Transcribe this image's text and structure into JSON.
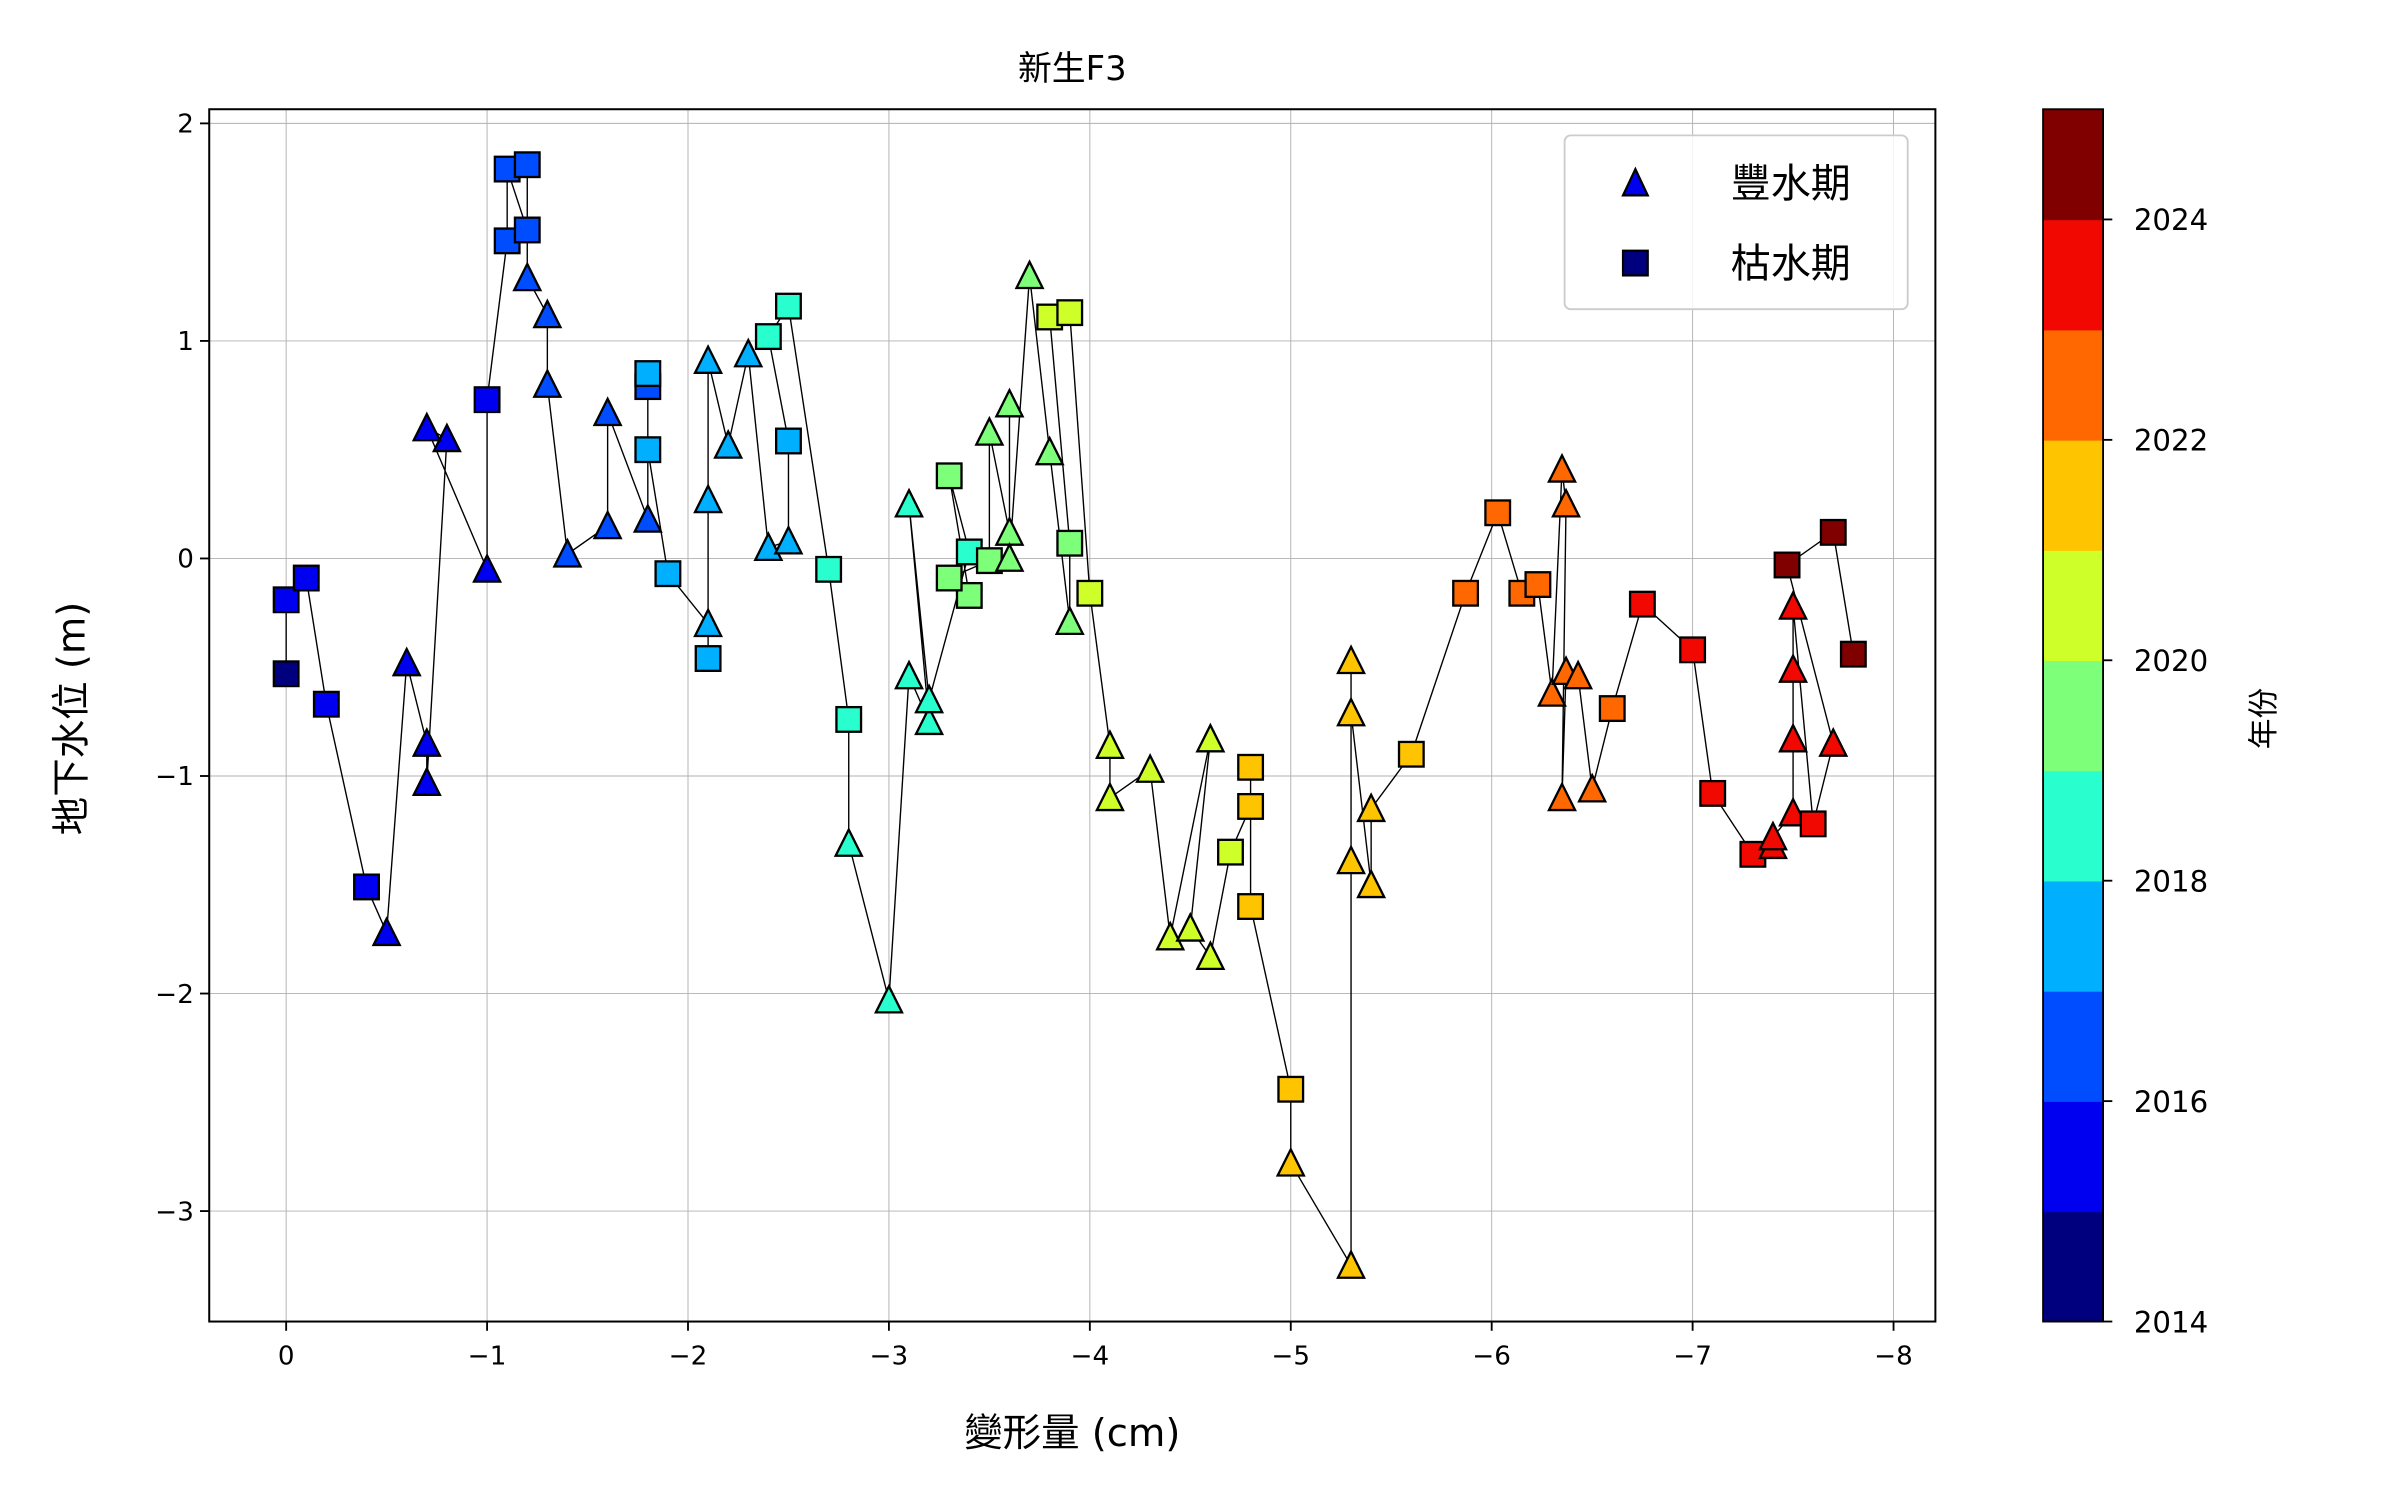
{
  "chart_data": {
    "type": "scatter",
    "title": "新生F3",
    "xlabel": "變形量 (cm)",
    "ylabel": "地下水位 (m)",
    "xlim": [
      0.37,
      -8.3
    ],
    "ylim": [
      -3.5,
      2.07
    ],
    "grid": true,
    "x_ticks": [
      0,
      -1,
      -2,
      -3,
      -4,
      -5,
      -6,
      -7,
      -8
    ],
    "x_tick_labels": [
      "0",
      "−1",
      "−2",
      "−3",
      "−4",
      "−5",
      "−6",
      "−7",
      "−8"
    ],
    "y_ticks": [
      2,
      1,
      0,
      -1,
      -2,
      -3
    ],
    "y_tick_labels": [
      "2",
      "1",
      "0",
      "−1",
      "−2",
      "−3"
    ],
    "legend": {
      "placement": "top-right",
      "entries": [
        {
          "marker": "triangle",
          "label": "豐水期"
        },
        {
          "marker": "square",
          "label": "枯水期"
        }
      ]
    },
    "colorbar": {
      "label": "年份",
      "range": [
        2014,
        2025
      ],
      "ticks": [
        2014,
        2016,
        2018,
        2020,
        2022,
        2024
      ],
      "tick_labels": [
        "2014",
        "2016",
        "2018",
        "2020",
        "2022",
        "2024"
      ],
      "colors": {
        "2014": "#00007f",
        "2015": "#0000f1",
        "2016": "#004cff",
        "2017": "#00b0ff",
        "2018": "#29ffce",
        "2019": "#7dff7a",
        "2020": "#ceff29",
        "2021": "#ffc400",
        "2022": "#ff6800",
        "2023": "#f10800",
        "2024": "#800000"
      }
    },
    "series": [
      {
        "x": 0,
        "y": -0.53,
        "year": 2014,
        "m": "s"
      },
      {
        "x": 0,
        "y": -0.19,
        "year": 2015,
        "m": "s"
      },
      {
        "x": -0.1,
        "y": -0.09,
        "year": 2015,
        "m": "s"
      },
      {
        "x": -0.2,
        "y": -0.67,
        "year": 2015,
        "m": "s"
      },
      {
        "x": -0.4,
        "y": -1.51,
        "year": 2015,
        "m": "s"
      },
      {
        "x": -0.5,
        "y": -1.72,
        "year": 2015,
        "m": "t"
      },
      {
        "x": -0.6,
        "y": -0.48,
        "year": 2015,
        "m": "t"
      },
      {
        "x": -0.7,
        "y": -0.85,
        "year": 2015,
        "m": "t"
      },
      {
        "x": -0.7,
        "y": -1.03,
        "year": 2015,
        "m": "t"
      },
      {
        "x": -0.8,
        "y": 0.55,
        "year": 2015,
        "m": "t"
      },
      {
        "x": -0.7,
        "y": 0.6,
        "year": 2015,
        "m": "t"
      },
      {
        "x": -1.0,
        "y": -0.05,
        "year": 2015,
        "m": "t"
      },
      {
        "x": -1.0,
        "y": 0.73,
        "year": 2015,
        "m": "s"
      },
      {
        "x": -1.1,
        "y": 1.46,
        "year": 2016,
        "m": "s"
      },
      {
        "x": -1.1,
        "y": 1.79,
        "year": 2016,
        "m": "s"
      },
      {
        "x": -1.2,
        "y": 1.51,
        "year": 2016,
        "m": "s"
      },
      {
        "x": -1.2,
        "y": 1.81,
        "year": 2016,
        "m": "s"
      },
      {
        "x": -1.2,
        "y": 1.29,
        "year": 2016,
        "m": "t"
      },
      {
        "x": -1.3,
        "y": 1.12,
        "year": 2016,
        "m": "t"
      },
      {
        "x": -1.3,
        "y": 0.8,
        "year": 2016,
        "m": "t"
      },
      {
        "x": -1.4,
        "y": 0.02,
        "year": 2016,
        "m": "t"
      },
      {
        "x": -1.6,
        "y": 0.15,
        "year": 2016,
        "m": "t"
      },
      {
        "x": -1.6,
        "y": 0.67,
        "year": 2016,
        "m": "t"
      },
      {
        "x": -1.8,
        "y": 0.18,
        "year": 2016,
        "m": "t"
      },
      {
        "x": -1.8,
        "y": 0.79,
        "year": 2016,
        "m": "s"
      },
      {
        "x": -1.8,
        "y": 0.85,
        "year": 2017,
        "m": "s"
      },
      {
        "x": -1.8,
        "y": 0.5,
        "year": 2017,
        "m": "s"
      },
      {
        "x": -1.9,
        "y": -0.07,
        "year": 2017,
        "m": "s"
      },
      {
        "x": -2.1,
        "y": -0.3,
        "year": 2017,
        "m": "t"
      },
      {
        "x": -2.1,
        "y": -0.46,
        "year": 2017,
        "m": "s"
      },
      {
        "x": -2.1,
        "y": 0.27,
        "year": 2017,
        "m": "t"
      },
      {
        "x": -2.1,
        "y": 0.91,
        "year": 2017,
        "m": "t"
      },
      {
        "x": -2.2,
        "y": 0.52,
        "year": 2017,
        "m": "t"
      },
      {
        "x": -2.3,
        "y": 0.94,
        "year": 2017,
        "m": "t"
      },
      {
        "x": -2.4,
        "y": 0.05,
        "year": 2017,
        "m": "t"
      },
      {
        "x": -2.5,
        "y": 0.08,
        "year": 2017,
        "m": "t"
      },
      {
        "x": -2.5,
        "y": 0.54,
        "year": 2017,
        "m": "s"
      },
      {
        "x": -2.4,
        "y": 1.02,
        "year": 2018,
        "m": "s"
      },
      {
        "x": -2.5,
        "y": 1.16,
        "year": 2018,
        "m": "s"
      },
      {
        "x": -2.7,
        "y": -0.05,
        "year": 2018,
        "m": "s"
      },
      {
        "x": -2.8,
        "y": -0.74,
        "year": 2018,
        "m": "s"
      },
      {
        "x": -2.8,
        "y": -1.31,
        "year": 2018,
        "m": "t"
      },
      {
        "x": -3.0,
        "y": -2.03,
        "year": 2018,
        "m": "t"
      },
      {
        "x": -3.1,
        "y": -0.54,
        "year": 2018,
        "m": "t"
      },
      {
        "x": -3.2,
        "y": -0.75,
        "year": 2018,
        "m": "t"
      },
      {
        "x": -3.1,
        "y": 0.25,
        "year": 2018,
        "m": "t"
      },
      {
        "x": -3.2,
        "y": -0.65,
        "year": 2018,
        "m": "t"
      },
      {
        "x": -3.4,
        "y": 0.03,
        "year": 2018,
        "m": "s"
      },
      {
        "x": -3.3,
        "y": 0.38,
        "year": 2019,
        "m": "s"
      },
      {
        "x": -3.4,
        "y": -0.17,
        "year": 2019,
        "m": "s"
      },
      {
        "x": -3.3,
        "y": -0.09,
        "year": 2019,
        "m": "s"
      },
      {
        "x": -3.5,
        "y": -0.01,
        "year": 2019,
        "m": "s"
      },
      {
        "x": -3.5,
        "y": 0.58,
        "year": 2019,
        "m": "t"
      },
      {
        "x": -3.6,
        "y": 0.12,
        "year": 2019,
        "m": "t"
      },
      {
        "x": -3.6,
        "y": 0.71,
        "year": 2019,
        "m": "t"
      },
      {
        "x": -3.6,
        "y": 0.0,
        "year": 2019,
        "m": "t"
      },
      {
        "x": -3.7,
        "y": 1.3,
        "year": 2019,
        "m": "t"
      },
      {
        "x": -3.8,
        "y": 0.49,
        "year": 2019,
        "m": "t"
      },
      {
        "x": -3.9,
        "y": -0.29,
        "year": 2019,
        "m": "t"
      },
      {
        "x": -3.9,
        "y": 0.07,
        "year": 2019,
        "m": "s"
      },
      {
        "x": -3.8,
        "y": 1.11,
        "year": 2020,
        "m": "s"
      },
      {
        "x": -3.9,
        "y": 1.13,
        "year": 2020,
        "m": "s"
      },
      {
        "x": -4.0,
        "y": -0.16,
        "year": 2020,
        "m": "s"
      },
      {
        "x": -4.1,
        "y": -0.86,
        "year": 2020,
        "m": "t"
      },
      {
        "x": -4.1,
        "y": -1.1,
        "year": 2020,
        "m": "t"
      },
      {
        "x": -4.3,
        "y": -0.97,
        "year": 2020,
        "m": "t"
      },
      {
        "x": -4.4,
        "y": -1.74,
        "year": 2020,
        "m": "t"
      },
      {
        "x": -4.6,
        "y": -0.83,
        "year": 2020,
        "m": "t"
      },
      {
        "x": -4.5,
        "y": -1.7,
        "year": 2020,
        "m": "t"
      },
      {
        "x": -4.6,
        "y": -1.83,
        "year": 2020,
        "m": "t"
      },
      {
        "x": -4.7,
        "y": -1.35,
        "year": 2020,
        "m": "s"
      },
      {
        "x": -4.8,
        "y": -1.14,
        "year": 2021,
        "m": "s"
      },
      {
        "x": -4.8,
        "y": -0.96,
        "year": 2021,
        "m": "s"
      },
      {
        "x": -4.8,
        "y": -1.6,
        "year": 2021,
        "m": "s"
      },
      {
        "x": -5.0,
        "y": -2.44,
        "year": 2021,
        "m": "s"
      },
      {
        "x": -5.0,
        "y": -2.78,
        "year": 2021,
        "m": "t"
      },
      {
        "x": -5.3,
        "y": -3.25,
        "year": 2021,
        "m": "t"
      },
      {
        "x": -5.3,
        "y": -1.39,
        "year": 2021,
        "m": "t"
      },
      {
        "x": -5.3,
        "y": -0.47,
        "year": 2021,
        "m": "t"
      },
      {
        "x": -5.3,
        "y": -0.71,
        "year": 2021,
        "m": "t"
      },
      {
        "x": -5.4,
        "y": -1.5,
        "year": 2021,
        "m": "t"
      },
      {
        "x": -5.4,
        "y": -1.15,
        "year": 2021,
        "m": "t"
      },
      {
        "x": -5.6,
        "y": -0.9,
        "year": 2021,
        "m": "s"
      },
      {
        "x": -5.87,
        "y": -0.16,
        "year": 2022,
        "m": "s"
      },
      {
        "x": -6.03,
        "y": 0.21,
        "year": 2022,
        "m": "s"
      },
      {
        "x": -6.15,
        "y": -0.16,
        "year": 2022,
        "m": "s"
      },
      {
        "x": -6.23,
        "y": -0.12,
        "year": 2022,
        "m": "s"
      },
      {
        "x": -6.3,
        "y": -0.62,
        "year": 2022,
        "m": "t"
      },
      {
        "x": -6.35,
        "y": 0.41,
        "year": 2022,
        "m": "t"
      },
      {
        "x": -6.37,
        "y": 0.25,
        "year": 2022,
        "m": "t"
      },
      {
        "x": -6.35,
        "y": -1.1,
        "year": 2022,
        "m": "t"
      },
      {
        "x": -6.37,
        "y": -0.52,
        "year": 2022,
        "m": "t"
      },
      {
        "x": -6.43,
        "y": -0.54,
        "year": 2022,
        "m": "t"
      },
      {
        "x": -6.5,
        "y": -1.06,
        "year": 2022,
        "m": "t"
      },
      {
        "x": -6.6,
        "y": -0.69,
        "year": 2022,
        "m": "s"
      },
      {
        "x": -6.75,
        "y": -0.21,
        "year": 2023,
        "m": "s"
      },
      {
        "x": -7.0,
        "y": -0.42,
        "year": 2023,
        "m": "s"
      },
      {
        "x": -7.1,
        "y": -1.08,
        "year": 2023,
        "m": "s"
      },
      {
        "x": -7.3,
        "y": -1.36,
        "year": 2023,
        "m": "s"
      },
      {
        "x": -7.4,
        "y": -1.32,
        "year": 2023,
        "m": "t"
      },
      {
        "x": -7.4,
        "y": -1.28,
        "year": 2023,
        "m": "t"
      },
      {
        "x": -7.5,
        "y": -1.17,
        "year": 2023,
        "m": "t"
      },
      {
        "x": -7.5,
        "y": -0.83,
        "year": 2023,
        "m": "t"
      },
      {
        "x": -7.5,
        "y": -0.51,
        "year": 2023,
        "m": "t"
      },
      {
        "x": -7.5,
        "y": -0.22,
        "year": 2023,
        "m": "t"
      },
      {
        "x": -7.6,
        "y": -1.22,
        "year": 2023,
        "m": "s"
      },
      {
        "x": -7.7,
        "y": -0.85,
        "year": 2023,
        "m": "t"
      },
      {
        "x": -7.47,
        "y": -0.03,
        "year": 2024,
        "m": "s"
      },
      {
        "x": -7.7,
        "y": 0.12,
        "year": 2024,
        "m": "s"
      },
      {
        "x": -7.8,
        "y": -0.44,
        "year": 2024,
        "m": "s"
      }
    ]
  }
}
